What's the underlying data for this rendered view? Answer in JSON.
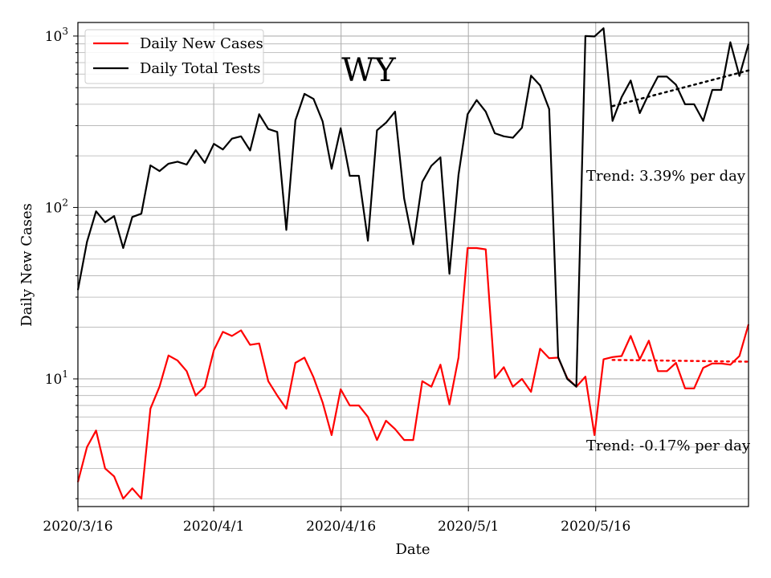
{
  "chart_data": {
    "type": "line",
    "title": "WY",
    "xlabel": "Date",
    "ylabel": "Daily New Cases",
    "yscale": "log",
    "ylim": [
      1.8,
      1200
    ],
    "y_ticks": [
      {
        "value": 10,
        "label": "10"
      },
      {
        "value": 100,
        "label": "10"
      },
      {
        "value": 1000,
        "label": "10"
      }
    ],
    "y_tick_exponents": [
      "1",
      "2",
      "3"
    ],
    "xlim": [
      "2020-03-16",
      "2020-06-03"
    ],
    "x_ticks": [
      {
        "date": "2020-03-16",
        "label": "2020/3/16"
      },
      {
        "date": "2020-04-01",
        "label": "2020/4/1"
      },
      {
        "date": "2020-04-16",
        "label": "2020/4/16"
      },
      {
        "date": "2020-05-01",
        "label": "2020/5/1"
      },
      {
        "date": "2020-05-16",
        "label": "2020/5/16"
      }
    ],
    "grid": true,
    "legend_position": "top-left",
    "series": [
      {
        "name": "Daily New Cases",
        "color": "#ff0000",
        "values": [
          2.5,
          4,
          5,
          3,
          2.7,
          2,
          2.3,
          2,
          6.7,
          9,
          13.7,
          12.8,
          11.1,
          8,
          9,
          14.7,
          18.8,
          17.8,
          19.2,
          15.8,
          16.1,
          9.7,
          8,
          6.7,
          12.4,
          13.3,
          10.2,
          7.3,
          4.7,
          8.7,
          7,
          7,
          6,
          4.4,
          5.7,
          5.1,
          4.4,
          4.4,
          9.7,
          9,
          12.1,
          7.1,
          13.3,
          58,
          58,
          57,
          10.1,
          11.7,
          9,
          10,
          8.4,
          15,
          13.2,
          13.3,
          10.1,
          9,
          10.3,
          4.7,
          13,
          13.4,
          13.6,
          17.8,
          13,
          16.7,
          11.1,
          11.1,
          12.4,
          8.8,
          8.8,
          11.6,
          12.3,
          12.3,
          12.1,
          13.6,
          20.8
        ]
      },
      {
        "name": "Daily Total Tests",
        "color": "#000000",
        "values": [
          33,
          63,
          95,
          82,
          89,
          58,
          88,
          92,
          176,
          163,
          180,
          185,
          178,
          216,
          182,
          235,
          218,
          252,
          260,
          215,
          350,
          287,
          276,
          74,
          322,
          460,
          430,
          318,
          168,
          290,
          153,
          153,
          64,
          282,
          312,
          362,
          113,
          61,
          141,
          175,
          196,
          41,
          155,
          350,
          423,
          362,
          271,
          260,
          255,
          292,
          588,
          515,
          375,
          13.4,
          10,
          9,
          1000,
          995,
          1110,
          320,
          440,
          550,
          355,
          460,
          580,
          580,
          520,
          400,
          400,
          320,
          485,
          485,
          920,
          585,
          900
        ]
      }
    ],
    "trend_lines": [
      {
        "series": "Daily Total Tests",
        "start_index": 59,
        "end_index": 74,
        "start_value": 390,
        "end_value": 630,
        "style": "dotted",
        "color": "#000000"
      },
      {
        "series": "Daily New Cases",
        "start_index": 59,
        "end_index": 74,
        "start_value": 12.9,
        "end_value": 12.6,
        "style": "dotted",
        "color": "#ff0000"
      }
    ],
    "annotations": [
      {
        "text": "Trend: 3.39% per day"
      },
      {
        "text": "Trend: -0.17% per day"
      }
    ]
  }
}
